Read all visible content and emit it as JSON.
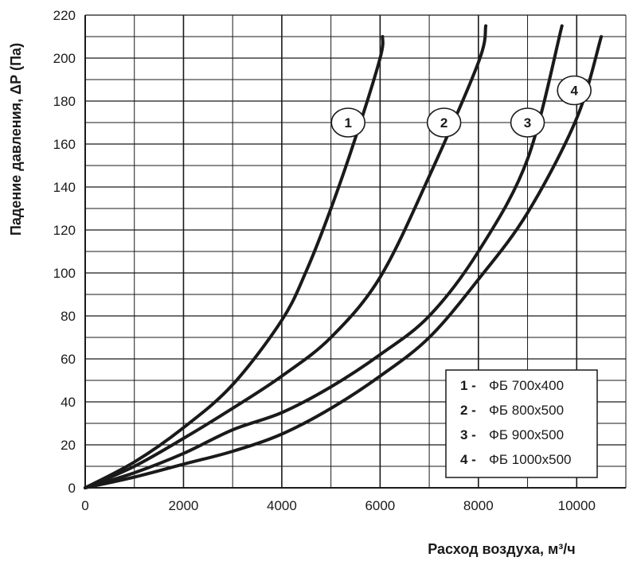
{
  "chart_data": {
    "type": "line",
    "title": "",
    "xlabel": "Расход воздуха, м³/ч",
    "ylabel": "Падение давления, ΔР (Па)",
    "xlim": [
      0,
      11000
    ],
    "ylim": [
      0,
      220
    ],
    "x_ticks": [
      0,
      2000,
      4000,
      6000,
      8000,
      10000
    ],
    "y_ticks": [
      0,
      20,
      40,
      60,
      80,
      100,
      120,
      140,
      160,
      180,
      200,
      220
    ],
    "x_ticks_text": [
      "0",
      "2000",
      "4000",
      "6000",
      "8000",
      "10000"
    ],
    "y_ticks_text": [
      "0",
      "20",
      "40",
      "60",
      "80",
      "100",
      "120",
      "140",
      "160",
      "180",
      "200",
      "220"
    ],
    "grid": true,
    "legend_position": "bottom-right",
    "series": [
      {
        "marker": "1",
        "legend_num": "1 -",
        "legend_text": "ФБ 700х400",
        "x": [
          0,
          1000,
          2000,
          3000,
          4000,
          4500,
          5000,
          5500,
          6000,
          6050
        ],
        "y": [
          0,
          12,
          28,
          48,
          78,
          101,
          130,
          163,
          200,
          210
        ]
      },
      {
        "marker": "2",
        "legend_num": "2 -",
        "legend_text": "ФБ 800х500",
        "x": [
          0,
          1000,
          2000,
          3000,
          4000,
          5000,
          6000,
          7000,
          8000,
          8150
        ],
        "y": [
          0,
          10,
          23,
          37,
          52,
          70,
          98,
          145,
          198,
          215
        ]
      },
      {
        "marker": "3",
        "legend_num": "3 -",
        "legend_text": "ФБ 900х500",
        "x": [
          0,
          1000,
          2000,
          3000,
          4000,
          5000,
          6000,
          7000,
          8000,
          9000,
          9700
        ],
        "y": [
          0,
          7,
          16,
          27,
          35,
          47,
          62,
          80,
          110,
          153,
          215
        ]
      },
      {
        "marker": "4",
        "legend_num": "4 -",
        "legend_text": "ФБ 1000х500",
        "x": [
          0,
          1000,
          2000,
          3000,
          4000,
          5000,
          6000,
          7000,
          8000,
          9000,
          10000,
          10500
        ],
        "y": [
          0,
          5,
          11,
          17,
          25,
          37,
          52,
          70,
          97,
          128,
          172,
          210
        ]
      }
    ],
    "markers": [
      {
        "label": "1",
        "x": 5350,
        "y": 170
      },
      {
        "label": "2",
        "x": 7300,
        "y": 170
      },
      {
        "label": "3",
        "x": 9000,
        "y": 170
      },
      {
        "label": "4",
        "x": 9950,
        "y": 185
      }
    ]
  },
  "colors": {
    "line": "#1a1a1a",
    "grid": "#1a1a1a",
    "background": "#ffffff"
  }
}
